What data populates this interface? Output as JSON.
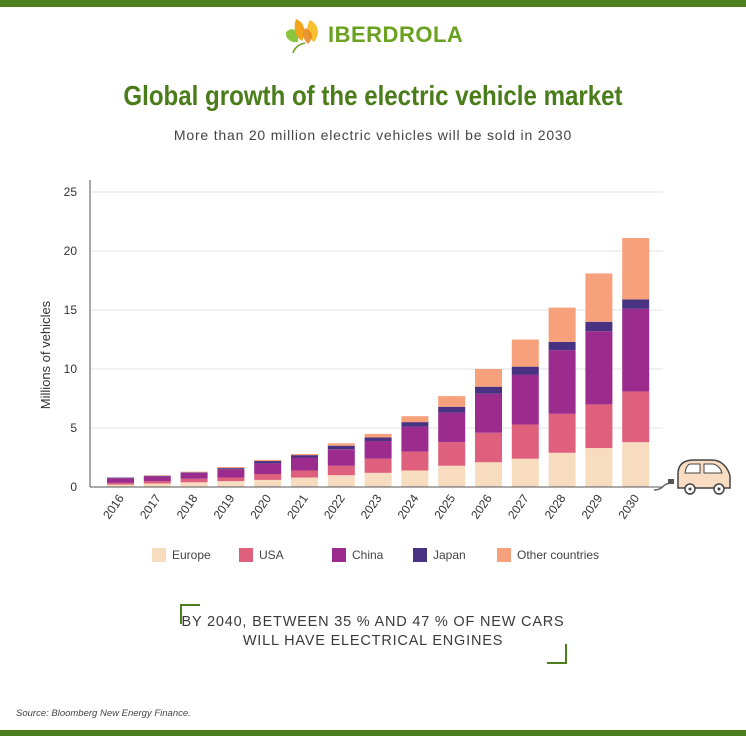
{
  "brand": {
    "name": "IBERDROLA"
  },
  "title": "Global growth of the electric vehicle market",
  "subtitle": "More than 20 million electric vehicles will be sold in 2030",
  "callout": {
    "line1": "BY 2040, BETWEEN 35 % AND 47 % OF NEW CARS",
    "line2": "WILL HAVE ELECTRICAL ENGINES"
  },
  "source": "Source: Bloomberg New Energy Finance.",
  "colors": {
    "Europe": "#f8dcc0",
    "USA": "#de607c",
    "China": "#9b2c8e",
    "Japan": "#4a3282",
    "Other countries": "#f7a07c",
    "brand_green": "#4e7f1f"
  },
  "chart_data": {
    "type": "bar",
    "stacked": true,
    "title": "Global growth of the electric vehicle market",
    "subtitle": "More than 20 million electric vehicles will be sold in 2030",
    "xlabel": "",
    "ylabel": "Millions of vehicles",
    "ylim": [
      0,
      25
    ],
    "yticks": [
      0,
      5,
      10,
      15,
      20,
      25
    ],
    "grid": true,
    "legend": "bottom",
    "categories": [
      "2016",
      "2017",
      "2018",
      "2019",
      "2020",
      "2021",
      "2022",
      "2023",
      "2024",
      "2025",
      "2026",
      "2027",
      "2028",
      "2029",
      "2030"
    ],
    "series": [
      {
        "name": "Europe",
        "values": [
          0.2,
          0.3,
          0.4,
          0.5,
          0.6,
          0.8,
          1.0,
          1.2,
          1.4,
          1.8,
          2.1,
          2.4,
          2.9,
          3.3,
          3.8
        ]
      },
      {
        "name": "USA",
        "values": [
          0.15,
          0.2,
          0.3,
          0.3,
          0.5,
          0.6,
          0.8,
          1.2,
          1.6,
          2.0,
          2.5,
          2.9,
          3.3,
          3.7,
          4.3
        ]
      },
      {
        "name": "China",
        "values": [
          0.4,
          0.4,
          0.5,
          0.7,
          0.9,
          1.1,
          1.4,
          1.5,
          2.1,
          2.5,
          3.3,
          4.2,
          5.4,
          6.2,
          7.0
        ]
      },
      {
        "name": "Japan",
        "values": [
          0.05,
          0.05,
          0.05,
          0.1,
          0.2,
          0.2,
          0.3,
          0.3,
          0.4,
          0.5,
          0.6,
          0.7,
          0.7,
          0.8,
          0.8
        ]
      },
      {
        "name": "Other countries",
        "values": [
          0.0,
          0.05,
          0.05,
          0.1,
          0.1,
          0.1,
          0.2,
          0.3,
          0.5,
          0.9,
          1.5,
          2.3,
          2.9,
          4.1,
          5.2
        ]
      }
    ]
  }
}
